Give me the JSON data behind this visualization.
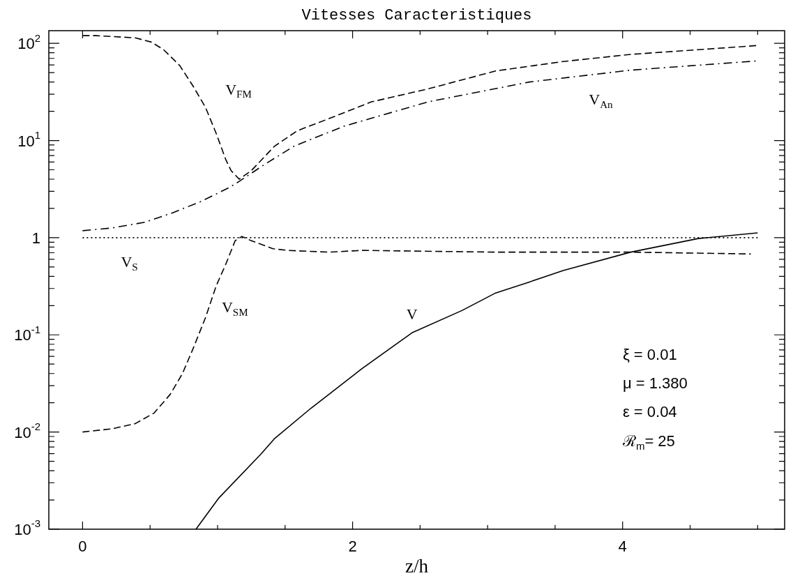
{
  "chart_data": {
    "type": "line",
    "title": "Vitesses Caracteristiques",
    "xlabel": "z/h",
    "xlim": [
      -0.25,
      5.2
    ],
    "ylim": [
      0.001,
      135
    ],
    "log": "y",
    "grid": false,
    "legend": false,
    "marker": "none",
    "xticks": [
      0,
      {
        "value": 0.5,
        "label": null
      },
      {
        "value": 1,
        "label": null
      },
      {
        "value": 1.5,
        "label": null
      },
      2,
      {
        "value": 2.5,
        "label": null
      },
      {
        "value": 3,
        "label": null
      },
      {
        "value": 3.5,
        "label": null
      },
      4,
      {
        "value": 4.5,
        "label": null
      },
      {
        "value": 5,
        "label": null
      }
    ],
    "yticks": [
      {
        "value": 0.001,
        "label": "10$^{-3}$"
      },
      {
        "value": 0.002,
        "label": null
      },
      {
        "value": 0.003,
        "label": null
      },
      {
        "value": 0.004,
        "label": null
      },
      {
        "value": 0.005,
        "label": null
      },
      {
        "value": 0.006,
        "label": null
      },
      {
        "value": 0.007,
        "label": null
      },
      {
        "value": 0.008,
        "label": null
      },
      {
        "value": 0.009,
        "label": null
      },
      {
        "value": 0.01,
        "label": "10$^{-2}$"
      },
      {
        "value": 0.02,
        "label": null
      },
      {
        "value": 0.03,
        "label": null
      },
      {
        "value": 0.04,
        "label": null
      },
      {
        "value": 0.05,
        "label": null
      },
      {
        "value": 0.06,
        "label": null
      },
      {
        "value": 0.07,
        "label": null
      },
      {
        "value": 0.08,
        "label": null
      },
      {
        "value": 0.09,
        "label": null
      },
      {
        "value": 0.1,
        "label": "10$^{-1}$"
      },
      {
        "value": 0.2,
        "label": null
      },
      {
        "value": 0.3,
        "label": null
      },
      {
        "value": 0.4,
        "label": null
      },
      {
        "value": 0.5,
        "label": null
      },
      {
        "value": 0.6,
        "label": null
      },
      {
        "value": 0.7,
        "label": null
      },
      {
        "value": 0.8,
        "label": null
      },
      {
        "value": 0.9,
        "label": null
      },
      {
        "value": 1,
        "label": "1"
      },
      {
        "value": 2,
        "label": null
      },
      {
        "value": 3,
        "label": null
      },
      {
        "value": 4,
        "label": null
      },
      {
        "value": 5,
        "label": null
      },
      {
        "value": 6,
        "label": null
      },
      {
        "value": 7,
        "label": null
      },
      {
        "value": 8,
        "label": null
      },
      {
        "value": 9,
        "label": null
      },
      {
        "value": 10,
        "label": "10$^{1}$"
      },
      {
        "value": 20,
        "label": null
      },
      {
        "value": 30,
        "label": null
      },
      {
        "value": 40,
        "label": null
      },
      {
        "value": 50,
        "label": null
      },
      {
        "value": 60,
        "label": null
      },
      {
        "value": 70,
        "label": null
      },
      {
        "value": 80,
        "label": null
      },
      {
        "value": 90,
        "label": null
      },
      {
        "value": 100,
        "label": "10$^{2}$"
      }
    ],
    "series": [
      {
        "name": "V$_{FM}$",
        "color": "#000000",
        "line_style": "dashed",
        "x": [
          0,
          0.1,
          0.39,
          0.51,
          0.6,
          0.72,
          0.82,
          0.91,
          0.99,
          1.06,
          1.1,
          1.16,
          1.25,
          1.42,
          1.59,
          1.82,
          2.14,
          2.56,
          3.06,
          3.56,
          4.06,
          4.56,
          5
        ],
        "values": [
          120,
          120,
          114,
          103,
          86,
          59,
          36,
          22,
          11.8,
          6.4,
          4.9,
          4,
          4.9,
          8.7,
          12.6,
          16.7,
          25,
          34,
          52,
          65,
          77,
          86,
          95
        ]
      },
      {
        "name": "V$_{An}$",
        "color": "#000000",
        "line_style": "dashdot",
        "x": [
          0,
          0.22,
          0.46,
          0.67,
          0.88,
          1.09,
          1.16,
          1.26,
          1.35,
          1.57,
          1.94,
          2.56,
          3.31,
          4.06,
          5
        ],
        "values": [
          1.18,
          1.26,
          1.44,
          1.81,
          2.37,
          3.3,
          3.8,
          4.7,
          5.7,
          8.8,
          14.1,
          25,
          40,
          53,
          66
        ]
      },
      {
        "name": "V$_{S}$",
        "color": "#000000",
        "line_style": "dotted",
        "x": [
          0,
          1,
          2,
          3,
          4,
          5
        ],
        "values": [
          1,
          1,
          1,
          1,
          1,
          1
        ]
      },
      {
        "name": "V$_{SM}$",
        "color": "#000000",
        "line_style": "dashed",
        "x": [
          0,
          0.22,
          0.39,
          0.53,
          0.65,
          0.74,
          0.82,
          0.91,
          0.99,
          1.06,
          1.13,
          1.18,
          1.25,
          1.41,
          1.52,
          1.82,
          2.07,
          3.06,
          4.06,
          4.95
        ],
        "values": [
          0.01,
          0.0108,
          0.0122,
          0.0157,
          0.0245,
          0.04,
          0.073,
          0.15,
          0.32,
          0.53,
          0.93,
          1.03,
          0.93,
          0.77,
          0.74,
          0.71,
          0.74,
          0.71,
          0.71,
          0.68
        ]
      },
      {
        "name": "V",
        "color": "#000000",
        "line_style": "solid",
        "x": [
          0.84,
          1.01,
          1.32,
          1.42,
          1.69,
          2.07,
          2.44,
          2.81,
          3.06,
          3.31,
          3.56,
          4.06,
          4.56,
          5
        ],
        "values": [
          0.001,
          0.0021,
          0.0059,
          0.0085,
          0.0175,
          0.045,
          0.105,
          0.178,
          0.27,
          0.35,
          0.46,
          0.71,
          0.98,
          1.12
        ]
      }
    ],
    "annotations": [
      "ξ = 0.01",
      "μ = 1.380",
      "ε = 0.04",
      "ℛ$_{m}$= 25"
    ]
  }
}
